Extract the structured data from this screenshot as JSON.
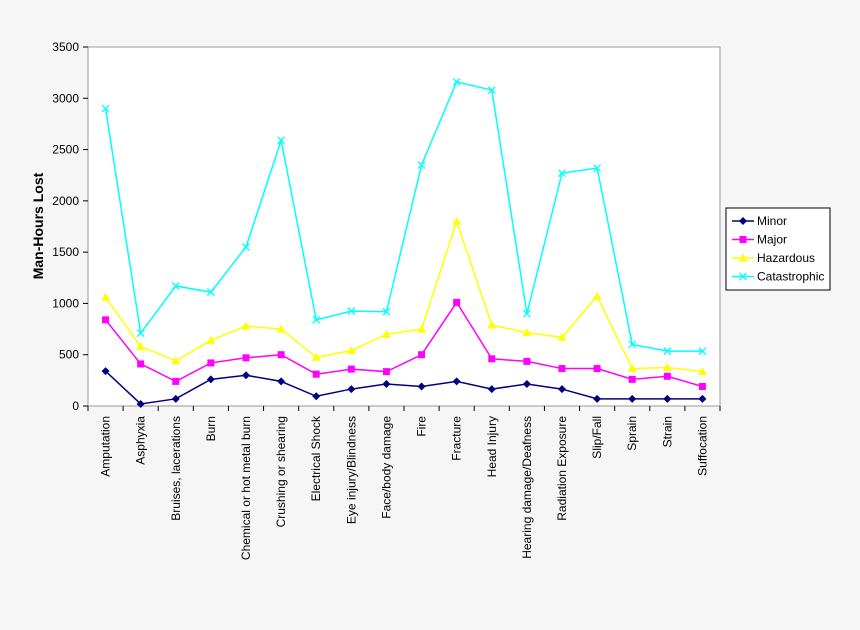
{
  "chart_data": {
    "type": "line",
    "title": "",
    "xlabel": "",
    "ylabel": "Man-Hours Lost",
    "ylim": [
      0,
      3500
    ],
    "yticks": [
      0,
      500,
      1000,
      1500,
      2000,
      2500,
      3000,
      3500
    ],
    "grid": false,
    "legend_position": "right",
    "categories": [
      "Amputation",
      "Asphyxia",
      "Bruises, lacerations",
      "Burn",
      "Chemical or hot metal burn",
      "Crushing or shearing",
      "Electrical Shock",
      "Eye injury/Blindness",
      "Face/body damage",
      "Fire",
      "Fracture",
      "Head Injury",
      "Hearing damage/Deafness",
      "Radiation Exposure",
      "Slip/Fall",
      "Sprain",
      "Strain",
      "Suffocation"
    ],
    "series": [
      {
        "name": "Minor",
        "color": "#000080",
        "marker": "diamond",
        "values": [
          340,
          20,
          70,
          260,
          300,
          240,
          95,
          165,
          215,
          190,
          240,
          165,
          215,
          165,
          70,
          70,
          70,
          70
        ]
      },
      {
        "name": "Major",
        "color": "#ff00ff",
        "marker": "square",
        "values": [
          840,
          410,
          240,
          420,
          470,
          500,
          310,
          360,
          335,
          500,
          1010,
          460,
          435,
          365,
          365,
          260,
          290,
          190
        ]
      },
      {
        "name": "Hazardous",
        "color": "#ffff00",
        "marker": "triangle",
        "values": [
          1060,
          580,
          440,
          640,
          780,
          750,
          475,
          540,
          700,
          750,
          1800,
          790,
          715,
          670,
          1070,
          365,
          375,
          335
        ]
      },
      {
        "name": "Catastrophic",
        "color": "#00ffff",
        "marker": "x",
        "values": [
          2900,
          710,
          1170,
          1110,
          1550,
          2590,
          840,
          925,
          920,
          2350,
          3160,
          3080,
          900,
          2270,
          2320,
          600,
          535,
          535
        ]
      }
    ]
  }
}
